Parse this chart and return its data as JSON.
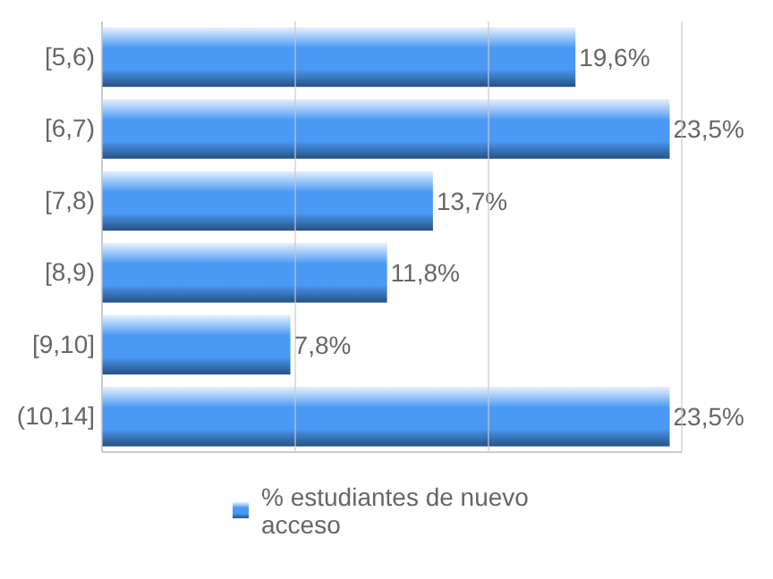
{
  "chart_data": {
    "type": "bar",
    "orientation": "horizontal",
    "categories": [
      "[5,6)",
      "[6,7)",
      "[7,8)",
      "[8,9)",
      "[9,10]",
      "(10,14]"
    ],
    "series": [
      {
        "name": "% estudiantes de nuevo acceso",
        "color": "#4a9af5",
        "values": [
          19.6,
          23.5,
          13.7,
          11.8,
          7.8,
          23.5
        ],
        "value_labels": [
          "19,6%",
          "23,5%",
          "13,7%",
          "11,8%",
          "7,8%",
          "23,5%"
        ]
      }
    ],
    "xlim": [
      0,
      24
    ],
    "xticks": [
      {
        "value": 0,
        "label": null
      },
      {
        "value": 8,
        "label": null
      },
      {
        "value": 16,
        "label": null
      },
      {
        "value": 24,
        "label": null
      }
    ],
    "grid": "x",
    "tick_labels": "y",
    "legend": "bottom"
  }
}
